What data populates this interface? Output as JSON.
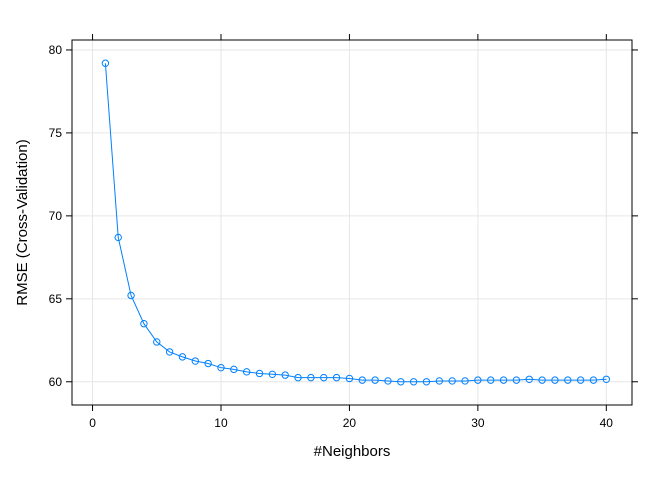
{
  "chart_data": {
    "type": "line",
    "xlabel": "#Neighbors",
    "ylabel": "RMSE (Cross-Validation)",
    "xlim": [
      -1.6,
      42.0
    ],
    "ylim": [
      58.6,
      80.6
    ],
    "xticks": [
      0,
      10,
      20,
      30,
      40
    ],
    "yticks": [
      60,
      65,
      70,
      75,
      80
    ],
    "grid": true,
    "series_color": "#0080ff",
    "grid_color": "#e6e6e6",
    "x": [
      1,
      2,
      3,
      4,
      5,
      6,
      7,
      8,
      9,
      10,
      11,
      12,
      13,
      14,
      15,
      16,
      17,
      18,
      19,
      20,
      21,
      22,
      23,
      24,
      25,
      26,
      27,
      28,
      29,
      30,
      31,
      32,
      33,
      34,
      35,
      36,
      37,
      38,
      39,
      40
    ],
    "y": [
      79.2,
      68.7,
      65.2,
      63.5,
      62.4,
      61.8,
      61.5,
      61.25,
      61.1,
      60.85,
      60.75,
      60.6,
      60.5,
      60.45,
      60.4,
      60.25,
      60.25,
      60.25,
      60.25,
      60.2,
      60.1,
      60.1,
      60.05,
      60.0,
      60.0,
      60.0,
      60.05,
      60.05,
      60.05,
      60.1,
      60.1,
      60.1,
      60.1,
      60.15,
      60.1,
      60.1,
      60.1,
      60.1,
      60.1,
      60.15
    ]
  }
}
